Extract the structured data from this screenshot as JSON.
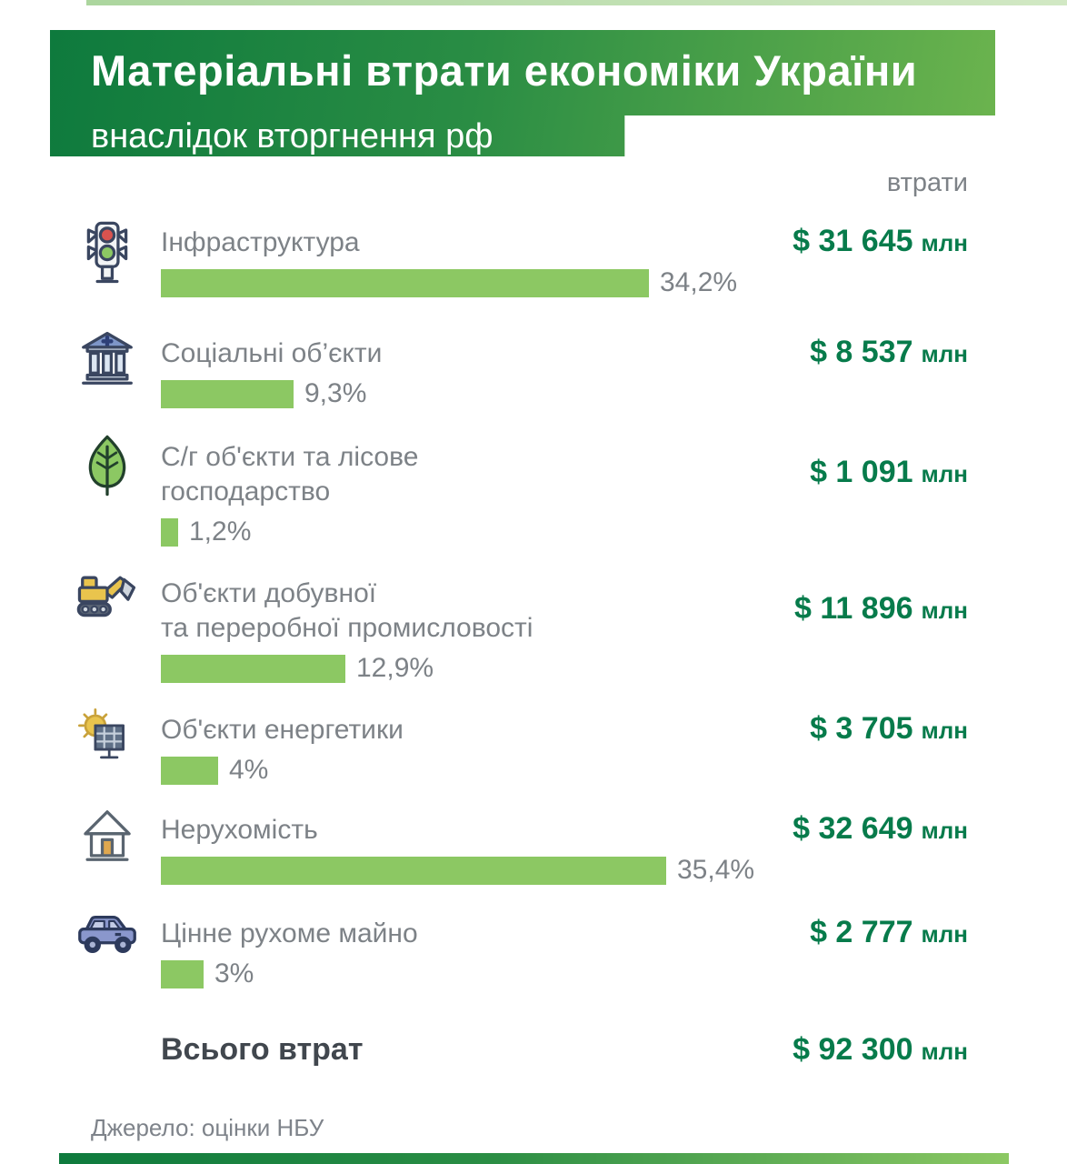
{
  "header": {
    "title": "Матеріальні втрати економіки України",
    "subtitle": "внаслідок вторгнення рф",
    "column_label": "втрати"
  },
  "chart_data": {
    "type": "bar",
    "title": "Матеріальні втрати економіки України внаслідок вторгнення рф",
    "categories": [
      "Інфраструктура",
      "Соціальні об’єкти",
      "С/г об’єкти та лісове господарство",
      "Об’єкти добувної та переробної промисловості",
      "Об’єкти енергетики",
      "Нерухомість",
      "Цінне рухоме майно"
    ],
    "values_mln_usd": [
      31645,
      8537,
      1091,
      11896,
      3705,
      32649,
      2777
    ],
    "percents": [
      34.2,
      9.3,
      1.2,
      12.9,
      4,
      35.4,
      3
    ],
    "total_mln_usd": 92300,
    "unit": "$ млн",
    "source": "Джерело: оцінки НБУ",
    "bar_color": "#8cc863",
    "value_color": "#077b4b"
  },
  "rows": [
    {
      "icon": "traffic-light-icon",
      "label": "Інфраструктура",
      "percent": 34.2,
      "percent_label": "34,2%",
      "amount": "$ 31 645",
      "unit": "млн"
    },
    {
      "icon": "social-building-icon",
      "label": "Соціальні об’єкти",
      "percent": 9.3,
      "percent_label": "9,3%",
      "amount": "$ 8 537",
      "unit": "млн"
    },
    {
      "icon": "leaf-icon",
      "label": "С/г об'єкти та лісове\nгосподарство",
      "percent": 1.2,
      "percent_label": "1,2%",
      "amount": "$ 1 091",
      "unit": "млн"
    },
    {
      "icon": "excavator-icon",
      "label": "Об'єкти добувної\nта переробної промисловості",
      "percent": 12.9,
      "percent_label": "12,9%",
      "amount": "$ 11 896",
      "unit": "млн"
    },
    {
      "icon": "solar-panel-icon",
      "label": "Об'єкти енергетики",
      "percent": 4,
      "percent_label": "4%",
      "amount": "$ 3 705",
      "unit": "млн"
    },
    {
      "icon": "house-icon",
      "label": "Нерухомість",
      "percent": 35.4,
      "percent_label": "35,4%",
      "amount": "$ 32 649",
      "unit": "млн"
    },
    {
      "icon": "car-icon",
      "label": "Цінне рухоме майно",
      "percent": 3,
      "percent_label": "3%",
      "amount": "$ 2 777",
      "unit": "млн"
    }
  ],
  "total": {
    "label": "Всього втрат",
    "amount": "$ 92 300",
    "unit": "млн"
  },
  "source": "Джерело: оцінки НБУ"
}
